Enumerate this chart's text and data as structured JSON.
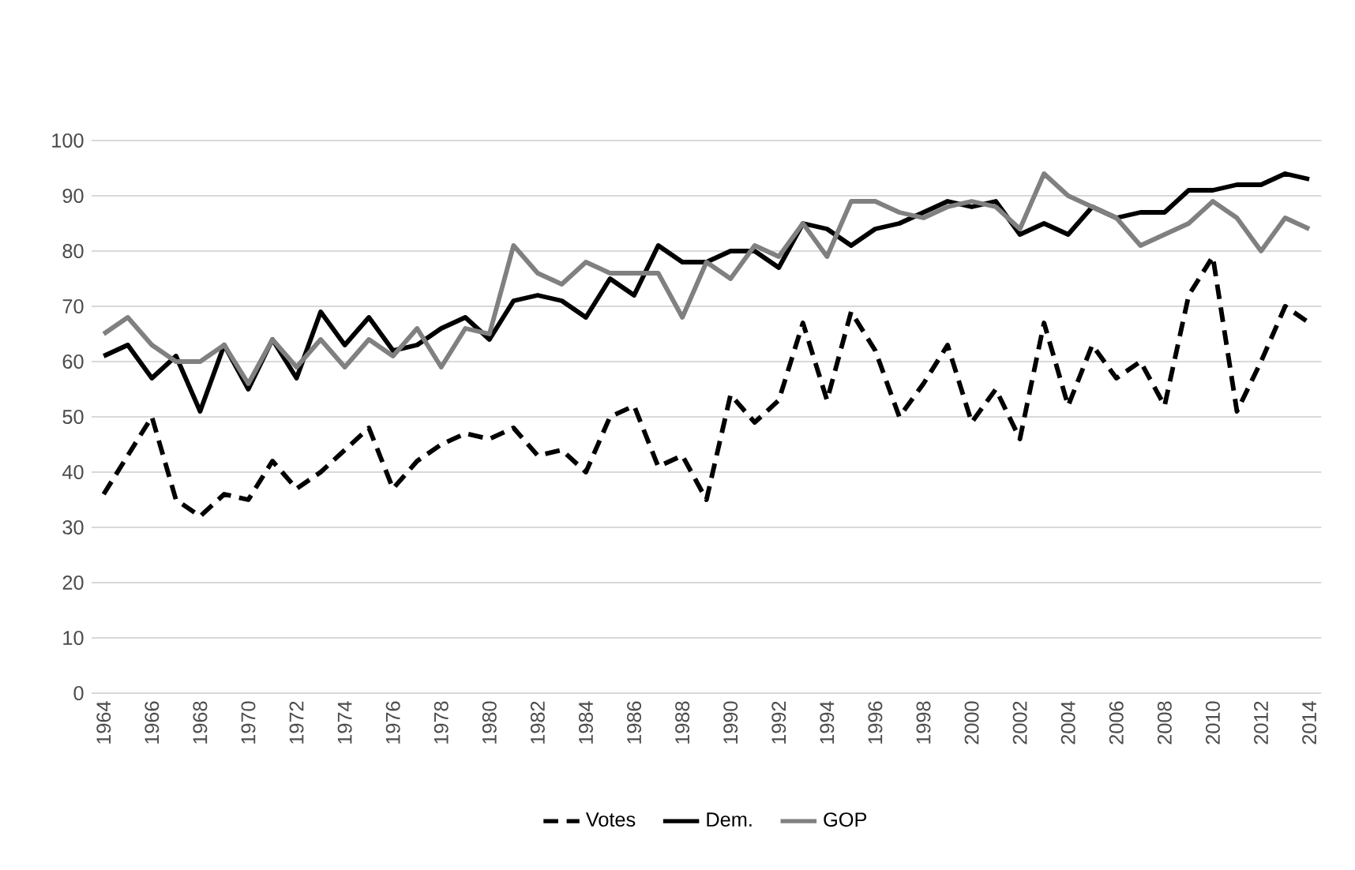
{
  "chart_data": {
    "type": "line",
    "x": [
      1964,
      1965,
      1966,
      1967,
      1968,
      1969,
      1970,
      1971,
      1972,
      1973,
      1974,
      1975,
      1976,
      1977,
      1978,
      1979,
      1980,
      1981,
      1982,
      1983,
      1984,
      1985,
      1986,
      1987,
      1988,
      1989,
      1990,
      1991,
      1992,
      1993,
      1994,
      1995,
      1996,
      1997,
      1998,
      1999,
      2000,
      2001,
      2002,
      2003,
      2004,
      2005,
      2006,
      2007,
      2008,
      2009,
      2010,
      2011,
      2012,
      2013,
      2014
    ],
    "series": [
      {
        "name": "Votes",
        "color": "#000000",
        "line_style": "dashed",
        "values": [
          36,
          43,
          50,
          35,
          32,
          36,
          35,
          42,
          37,
          40,
          44,
          48,
          37,
          42,
          45,
          47,
          46,
          48,
          43,
          44,
          40,
          50,
          52,
          41,
          43,
          35,
          54,
          49,
          53,
          67,
          53,
          69,
          62,
          50,
          56,
          63,
          49,
          55,
          46,
          67,
          52,
          63,
          57,
          60,
          52,
          72,
          79,
          51,
          60,
          70,
          67
        ]
      },
      {
        "name": "Dem.",
        "color": "#000000",
        "line_style": "solid",
        "values": [
          61,
          63,
          57,
          61,
          51,
          63,
          55,
          64,
          57,
          69,
          63,
          68,
          62,
          63,
          66,
          68,
          64,
          71,
          72,
          71,
          68,
          75,
          72,
          81,
          78,
          78,
          80,
          80,
          77,
          85,
          84,
          81,
          84,
          85,
          87,
          89,
          88,
          89,
          83,
          85,
          83,
          88,
          86,
          87,
          87,
          91,
          91,
          92,
          92,
          94,
          93
        ]
      },
      {
        "name": "GOP",
        "color": "#808080",
        "line_style": "solid",
        "values": [
          65,
          68,
          63,
          60,
          60,
          63,
          56,
          64,
          59,
          64,
          59,
          64,
          61,
          66,
          59,
          66,
          65,
          81,
          76,
          74,
          78,
          76,
          76,
          76,
          68,
          78,
          75,
          81,
          79,
          85,
          79,
          89,
          89,
          87,
          86,
          88,
          89,
          88,
          84,
          94,
          90,
          88,
          86,
          81,
          83,
          85,
          89,
          86,
          80,
          86,
          84
        ]
      }
    ],
    "xlim": [
      1963.5,
      2014.5
    ],
    "xticks": [
      1964,
      1966,
      1968,
      1970,
      1972,
      1974,
      1976,
      1978,
      1980,
      1982,
      1984,
      1986,
      1988,
      1990,
      1992,
      1994,
      1996,
      1998,
      2000,
      2002,
      2004,
      2006,
      2008,
      2010,
      2012,
      2014
    ],
    "ylim": [
      0,
      100
    ],
    "yticks": [
      0,
      10,
      20,
      30,
      40,
      50,
      60,
      70,
      80,
      90,
      100
    ],
    "grid": "y",
    "legend": "bottom",
    "marker": "none"
  }
}
